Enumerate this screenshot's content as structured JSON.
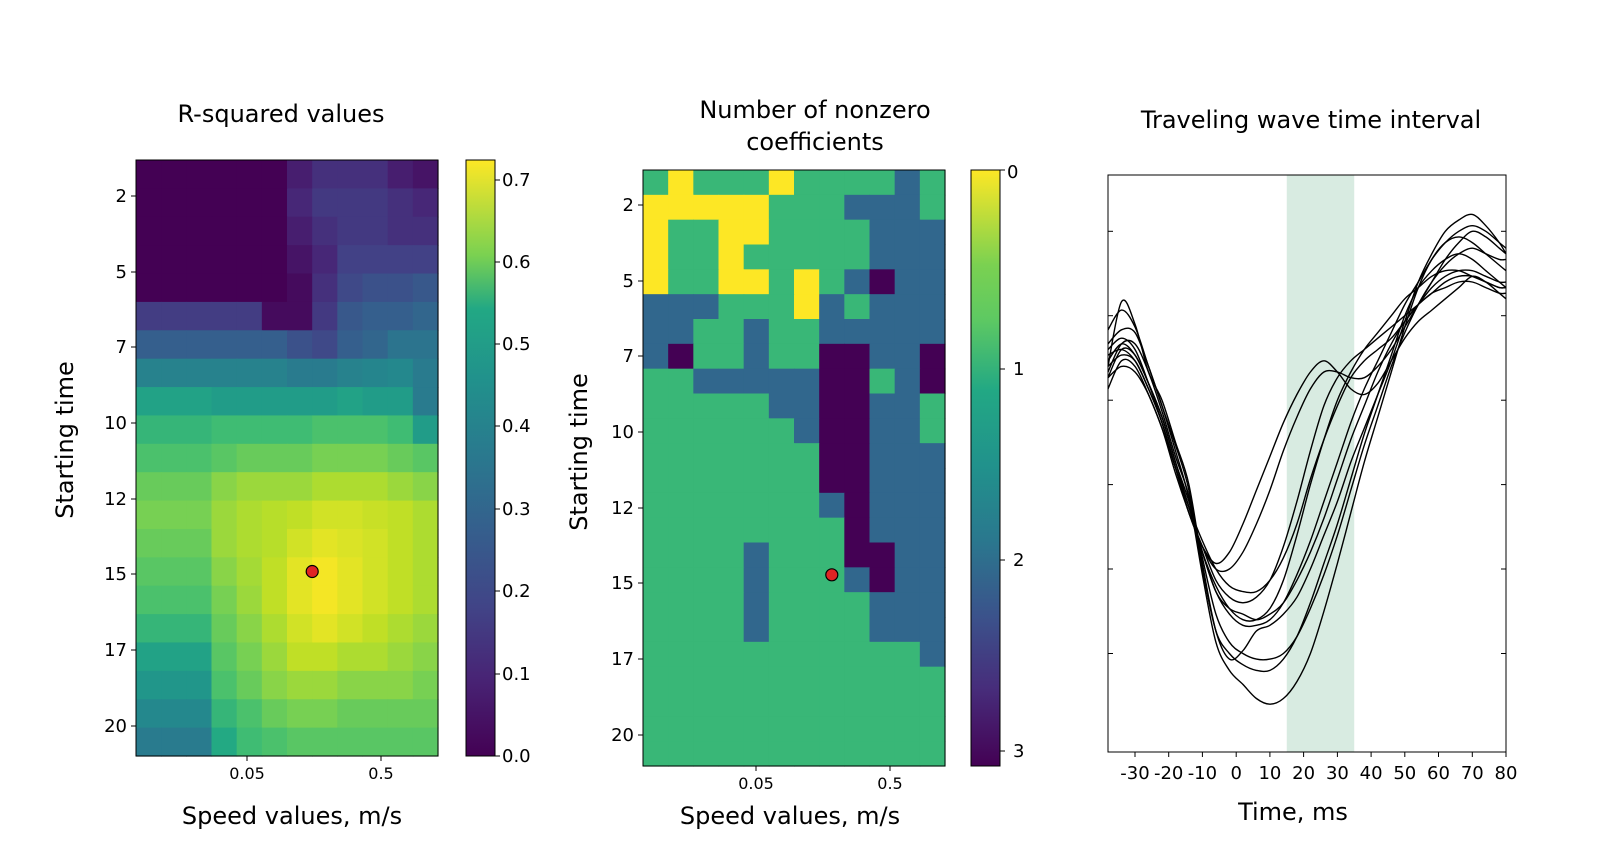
{
  "chart_data": [
    {
      "type": "heatmap",
      "title": "R-squared values",
      "xlabel": "Speed values, m/s",
      "ylabel": "Starting time",
      "x_ticks": [
        "0.05",
        "0.5"
      ],
      "y_ticks": [
        "2",
        "5",
        "7",
        "10",
        "12",
        "15",
        "17",
        "20"
      ],
      "colorbar": {
        "colormap": "viridis",
        "range": [
          0.0,
          0.73
        ],
        "ticks": [
          "0.0",
          "0.1",
          "0.2",
          "0.3",
          "0.4",
          "0.5",
          "0.6",
          "0.7"
        ]
      },
      "n_cols": 12,
      "values": [
        [
          0.0,
          0.0,
          0.0,
          0.0,
          0.0,
          0.0,
          0.06,
          0.1,
          0.1,
          0.1,
          0.06,
          0.04
        ],
        [
          0.0,
          0.0,
          0.0,
          0.0,
          0.0,
          0.0,
          0.08,
          0.12,
          0.12,
          0.12,
          0.1,
          0.08
        ],
        [
          0.0,
          0.0,
          0.0,
          0.0,
          0.0,
          0.0,
          0.06,
          0.1,
          0.12,
          0.12,
          0.1,
          0.1
        ],
        [
          0.0,
          0.0,
          0.0,
          0.0,
          0.0,
          0.0,
          0.04,
          0.08,
          0.14,
          0.14,
          0.14,
          0.14
        ],
        [
          0.0,
          0.0,
          0.0,
          0.0,
          0.0,
          0.0,
          0.02,
          0.1,
          0.16,
          0.18,
          0.18,
          0.2
        ],
        [
          0.13,
          0.13,
          0.13,
          0.13,
          0.13,
          0.02,
          0.02,
          0.12,
          0.2,
          0.22,
          0.22,
          0.24
        ],
        [
          0.22,
          0.22,
          0.22,
          0.22,
          0.22,
          0.22,
          0.18,
          0.16,
          0.22,
          0.24,
          0.28,
          0.28
        ],
        [
          0.32,
          0.32,
          0.32,
          0.32,
          0.32,
          0.32,
          0.3,
          0.3,
          0.32,
          0.33,
          0.34,
          0.3
        ],
        [
          0.42,
          0.42,
          0.42,
          0.4,
          0.4,
          0.4,
          0.4,
          0.4,
          0.42,
          0.4,
          0.4,
          0.3
        ],
        [
          0.48,
          0.48,
          0.48,
          0.5,
          0.5,
          0.5,
          0.5,
          0.52,
          0.52,
          0.52,
          0.5,
          0.4
        ],
        [
          0.52,
          0.52,
          0.52,
          0.54,
          0.56,
          0.56,
          0.56,
          0.58,
          0.58,
          0.58,
          0.56,
          0.54
        ],
        [
          0.56,
          0.56,
          0.56,
          0.6,
          0.62,
          0.62,
          0.62,
          0.64,
          0.64,
          0.64,
          0.62,
          0.6
        ],
        [
          0.58,
          0.58,
          0.58,
          0.62,
          0.64,
          0.65,
          0.66,
          0.68,
          0.68,
          0.67,
          0.66,
          0.64
        ],
        [
          0.56,
          0.56,
          0.56,
          0.62,
          0.64,
          0.65,
          0.68,
          0.7,
          0.69,
          0.68,
          0.66,
          0.64
        ],
        [
          0.54,
          0.54,
          0.54,
          0.6,
          0.63,
          0.66,
          0.7,
          0.72,
          0.7,
          0.68,
          0.66,
          0.64
        ],
        [
          0.52,
          0.52,
          0.52,
          0.58,
          0.62,
          0.66,
          0.7,
          0.72,
          0.7,
          0.68,
          0.66,
          0.64
        ],
        [
          0.48,
          0.48,
          0.48,
          0.56,
          0.6,
          0.64,
          0.68,
          0.7,
          0.68,
          0.66,
          0.64,
          0.62
        ],
        [
          0.42,
          0.42,
          0.42,
          0.54,
          0.58,
          0.62,
          0.66,
          0.66,
          0.64,
          0.64,
          0.62,
          0.6
        ],
        [
          0.38,
          0.38,
          0.38,
          0.52,
          0.56,
          0.6,
          0.62,
          0.62,
          0.6,
          0.6,
          0.6,
          0.58
        ],
        [
          0.34,
          0.34,
          0.34,
          0.48,
          0.52,
          0.56,
          0.58,
          0.58,
          0.56,
          0.56,
          0.56,
          0.56
        ],
        [
          0.3,
          0.3,
          0.3,
          0.44,
          0.5,
          0.52,
          0.54,
          0.54,
          0.54,
          0.54,
          0.54,
          0.54
        ]
      ],
      "marker": {
        "col": 7,
        "row": 14.5,
        "color": "#e02424"
      }
    },
    {
      "type": "heatmap",
      "title": "Number of nonzero coefficients",
      "title_lines": [
        "Number of nonzero",
        "coefficients"
      ],
      "xlabel": "Speed values, m/s",
      "ylabel": "Starting time",
      "x_ticks": [
        "0.05",
        "0.5"
      ],
      "y_ticks": [
        "2",
        "5",
        "7",
        "10",
        "12",
        "15",
        "17",
        "20"
      ],
      "colorbar": {
        "colormap": "viridis_reversed",
        "range": [
          0,
          3
        ],
        "ticks": [
          "0",
          "1",
          "2",
          "3"
        ]
      },
      "n_cols": 12,
      "values": [
        [
          1,
          0,
          1,
          1,
          1,
          0,
          1,
          1,
          1,
          1,
          2,
          1
        ],
        [
          0,
          0,
          0,
          0,
          0,
          1,
          1,
          1,
          2,
          2,
          2,
          1
        ],
        [
          0,
          1,
          1,
          0,
          0,
          1,
          1,
          1,
          1,
          2,
          2,
          2
        ],
        [
          0,
          1,
          1,
          0,
          1,
          1,
          1,
          1,
          1,
          2,
          2,
          2
        ],
        [
          0,
          1,
          1,
          0,
          0,
          1,
          0,
          1,
          2,
          3,
          2,
          2
        ],
        [
          2,
          2,
          2,
          1,
          1,
          1,
          0,
          2,
          1,
          2,
          2,
          2
        ],
        [
          2,
          2,
          1,
          1,
          2,
          1,
          1,
          2,
          2,
          2,
          2,
          2
        ],
        [
          2,
          3,
          1,
          1,
          2,
          1,
          1,
          3,
          3,
          2,
          2,
          3
        ],
        [
          1,
          1,
          2,
          2,
          2,
          2,
          2,
          3,
          3,
          1,
          2,
          3
        ],
        [
          1,
          1,
          1,
          1,
          1,
          2,
          2,
          3,
          3,
          2,
          2,
          1
        ],
        [
          1,
          1,
          1,
          1,
          1,
          1,
          2,
          3,
          3,
          2,
          2,
          1
        ],
        [
          1,
          1,
          1,
          1,
          1,
          1,
          1,
          3,
          3,
          2,
          2,
          2
        ],
        [
          1,
          1,
          1,
          1,
          1,
          1,
          1,
          3,
          3,
          2,
          2,
          2
        ],
        [
          1,
          1,
          1,
          1,
          1,
          1,
          1,
          2,
          3,
          2,
          2,
          2
        ],
        [
          1,
          1,
          1,
          1,
          1,
          1,
          1,
          1,
          3,
          2,
          2,
          2
        ],
        [
          1,
          1,
          1,
          1,
          2,
          1,
          1,
          1,
          3,
          3,
          2,
          2
        ],
        [
          1,
          1,
          1,
          1,
          2,
          1,
          1,
          1,
          2,
          3,
          2,
          2
        ],
        [
          1,
          1,
          1,
          1,
          2,
          1,
          1,
          1,
          1,
          2,
          2,
          2
        ],
        [
          1,
          1,
          1,
          1,
          2,
          1,
          1,
          1,
          1,
          2,
          2,
          2
        ],
        [
          1,
          1,
          1,
          1,
          1,
          1,
          1,
          1,
          1,
          1,
          1,
          2
        ],
        [
          1,
          1,
          1,
          1,
          1,
          1,
          1,
          1,
          1,
          1,
          1,
          1
        ],
        [
          1,
          1,
          1,
          1,
          1,
          1,
          1,
          1,
          1,
          1,
          1,
          1
        ],
        [
          1,
          1,
          1,
          1,
          1,
          1,
          1,
          1,
          1,
          1,
          1,
          1
        ],
        [
          1,
          1,
          1,
          1,
          1,
          1,
          1,
          1,
          1,
          1,
          1,
          1
        ]
      ],
      "marker": {
        "col": 7.5,
        "row": 16.3,
        "color": "#e02424"
      }
    },
    {
      "type": "line",
      "title": "Traveling wave time interval",
      "xlabel": "Time, ms",
      "xlim": [
        -38,
        80
      ],
      "ylim": [
        -1.05,
        1.0
      ],
      "x_ticks": [
        -30,
        -20,
        -10,
        0,
        10,
        20,
        30,
        40,
        50,
        60,
        70,
        80
      ],
      "y_tick_values": [
        0.8,
        0.5,
        0.2,
        -0.1,
        -0.4,
        -0.7
      ],
      "shaded_interval": [
        15,
        35
      ],
      "shade_color": "#d8ebe1",
      "x": [
        -38,
        -34,
        -30,
        -26,
        -22,
        -18,
        -14,
        -10,
        -6,
        -2,
        2,
        6,
        10,
        14,
        18,
        22,
        26,
        30,
        34,
        38,
        42,
        46,
        50,
        54,
        58,
        62,
        66,
        70,
        74,
        78,
        80
      ],
      "series": [
        {
          "values": [
            0.32,
            0.55,
            0.47,
            0.3,
            0.2,
            0.05,
            -0.1,
            -0.38,
            -0.62,
            -0.72,
            -0.69,
            -0.62,
            -0.6,
            -0.56,
            -0.5,
            -0.4,
            -0.28,
            -0.16,
            -0.02,
            0.1,
            0.22,
            0.34,
            0.48,
            0.62,
            0.72,
            0.8,
            0.84,
            0.86,
            0.82,
            0.76,
            0.72
          ]
        },
        {
          "values": [
            0.45,
            0.52,
            0.46,
            0.32,
            0.18,
            0.02,
            -0.15,
            -0.42,
            -0.66,
            -0.76,
            -0.81,
            -0.86,
            -0.88,
            -0.86,
            -0.8,
            -0.7,
            -0.55,
            -0.38,
            -0.2,
            -0.02,
            0.14,
            0.3,
            0.46,
            0.6,
            0.7,
            0.76,
            0.78,
            0.76,
            0.72,
            0.68,
            0.66
          ]
        },
        {
          "values": [
            0.4,
            0.45,
            0.44,
            0.32,
            0.18,
            0.04,
            -0.12,
            -0.4,
            -0.62,
            -0.7,
            -0.74,
            -0.76,
            -0.76,
            -0.72,
            -0.64,
            -0.52,
            -0.38,
            -0.24,
            -0.08,
            0.08,
            0.22,
            0.36,
            0.5,
            0.6,
            0.66,
            0.7,
            0.72,
            0.7,
            0.66,
            0.62,
            0.6
          ]
        },
        {
          "values": [
            0.3,
            0.4,
            0.4,
            0.3,
            0.16,
            0.0,
            -0.14,
            -0.36,
            -0.56,
            -0.66,
            -0.7,
            -0.72,
            -0.72,
            -0.7,
            -0.64,
            -0.54,
            -0.42,
            -0.28,
            -0.12,
            0.04,
            0.18,
            0.32,
            0.44,
            0.54,
            0.62,
            0.68,
            0.72,
            0.74,
            0.72,
            0.7,
            0.7
          ]
        },
        {
          "values": [
            0.28,
            0.38,
            0.36,
            0.26,
            0.14,
            -0.02,
            -0.16,
            -0.34,
            -0.48,
            -0.54,
            -0.56,
            -0.58,
            -0.56,
            -0.52,
            -0.44,
            -0.34,
            -0.22,
            -0.08,
            0.06,
            0.18,
            0.3,
            0.4,
            0.48,
            0.54,
            0.58,
            0.62,
            0.64,
            0.64,
            0.62,
            0.6,
            0.6
          ]
        },
        {
          "values": [
            0.32,
            0.36,
            0.34,
            0.24,
            0.12,
            -0.04,
            -0.18,
            -0.3,
            -0.4,
            -0.46,
            -0.48,
            -0.48,
            -0.44,
            -0.36,
            -0.24,
            -0.08,
            0.06,
            0.18,
            0.28,
            0.34,
            0.38,
            0.42,
            0.48,
            0.54,
            0.6,
            0.64,
            0.66,
            0.66,
            0.64,
            0.62,
            0.62
          ]
        },
        {
          "values": [
            0.24,
            0.34,
            0.32,
            0.22,
            0.1,
            -0.06,
            -0.2,
            -0.32,
            -0.44,
            -0.5,
            -0.52,
            -0.5,
            -0.44,
            -0.32,
            -0.16,
            0.02,
            0.18,
            0.28,
            0.34,
            0.38,
            0.42,
            0.46,
            0.5,
            0.54,
            0.58,
            0.6,
            0.62,
            0.62,
            0.6,
            0.58,
            0.58
          ]
        },
        {
          "values": [
            0.28,
            0.32,
            0.3,
            0.22,
            0.1,
            -0.04,
            -0.18,
            -0.34,
            -0.46,
            -0.54,
            -0.58,
            -0.58,
            -0.54,
            -0.44,
            -0.28,
            -0.1,
            0.06,
            0.2,
            0.3,
            0.38,
            0.44,
            0.5,
            0.56,
            0.6,
            0.64,
            0.66,
            0.66,
            0.64,
            0.62,
            0.6,
            0.6
          ]
        },
        {
          "values": [
            0.36,
            0.38,
            0.34,
            0.24,
            0.12,
            -0.04,
            -0.2,
            -0.32,
            -0.38,
            -0.34,
            -0.24,
            -0.12,
            0.0,
            0.12,
            0.22,
            0.3,
            0.34,
            0.3,
            0.24,
            0.22,
            0.26,
            0.34,
            0.42,
            0.48,
            0.52,
            0.56,
            0.6,
            0.64,
            0.62,
            0.58,
            0.56
          ]
        },
        {
          "values": [
            0.38,
            0.42,
            0.38,
            0.26,
            0.12,
            -0.04,
            -0.2,
            -0.32,
            -0.4,
            -0.4,
            -0.34,
            -0.24,
            -0.12,
            0.02,
            0.14,
            0.24,
            0.3,
            0.3,
            0.28,
            0.28,
            0.32,
            0.38,
            0.46,
            0.54,
            0.62,
            0.7,
            0.76,
            0.8,
            0.78,
            0.74,
            0.72
          ]
        },
        {
          "values": [
            0.34,
            0.4,
            0.36,
            0.26,
            0.14,
            -0.02,
            -0.18,
            -0.34,
            -0.48,
            -0.56,
            -0.6,
            -0.6,
            -0.58,
            -0.52,
            -0.42,
            -0.3,
            -0.16,
            -0.02,
            0.12,
            0.24,
            0.34,
            0.44,
            0.54,
            0.62,
            0.7,
            0.76,
            0.8,
            0.82,
            0.8,
            0.76,
            0.74
          ]
        }
      ]
    }
  ]
}
